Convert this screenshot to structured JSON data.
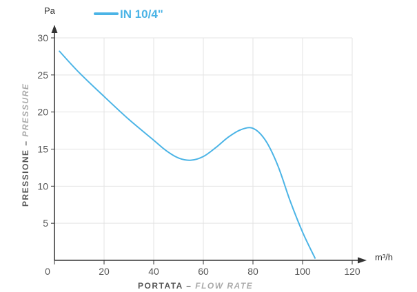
{
  "chart_data": {
    "type": "line",
    "y_unit": "Pa",
    "x_unit": "m³/h",
    "xlabel_main": "PORTATA",
    "xlabel_sep": " – ",
    "xlabel_alt": "FLOW RATE",
    "ylabel_main": "PRESSIONE",
    "ylabel_sep": " – ",
    "ylabel_alt": "PRESSURE",
    "xlim": [
      0,
      120
    ],
    "ylim": [
      0,
      30
    ],
    "x_ticks": [
      "0",
      "20",
      "40",
      "60",
      "80",
      "100",
      "120"
    ],
    "y_ticks": [
      "5",
      "10",
      "15",
      "20",
      "25",
      "30"
    ],
    "grid": true,
    "legend_position": "top",
    "series": [
      {
        "name": "IN 10/4\"",
        "color": "#4bb4e6",
        "x": [
          2,
          10,
          20,
          30,
          40,
          45,
          50,
          55,
          60,
          65,
          70,
          75,
          80,
          85,
          90,
          95,
          100,
          105
        ],
        "y": [
          28.2,
          25.3,
          22.1,
          19.0,
          16.2,
          14.8,
          13.8,
          13.5,
          14.0,
          15.2,
          16.6,
          17.6,
          17.8,
          16.2,
          12.8,
          8.0,
          3.8,
          0.3
        ]
      }
    ]
  }
}
